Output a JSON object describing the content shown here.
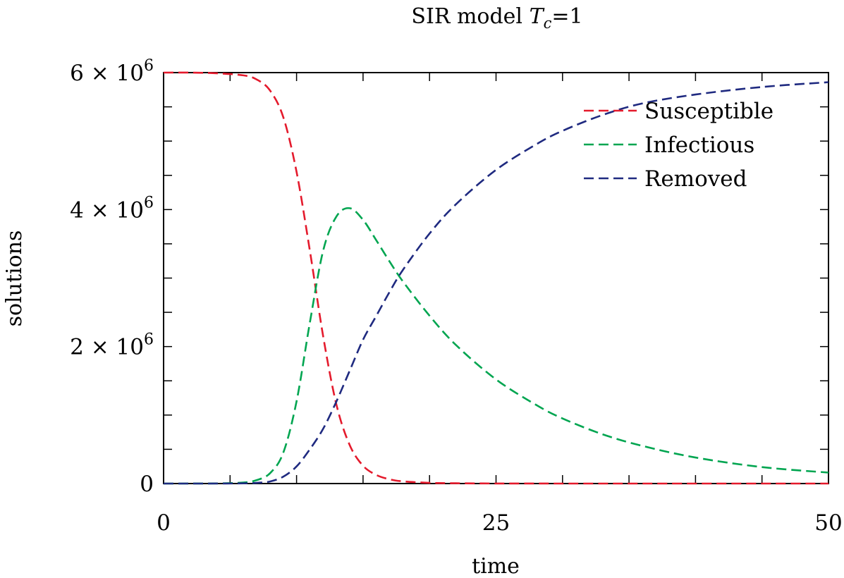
{
  "chart_data": {
    "type": "line",
    "title": "SIR model",
    "title_math": {
      "var": "T",
      "sub": "c",
      "rest": "=1"
    },
    "xlabel": "time",
    "ylabel": "solutions",
    "xlim": [
      0,
      50
    ],
    "ylim": [
      0,
      6000000
    ],
    "x_ticks": [
      0,
      25,
      50
    ],
    "y_ticks": [
      {
        "value": 0,
        "label": "0"
      },
      {
        "value": 2000000,
        "label_mantissa": "2 × 10",
        "label_exp": "6"
      },
      {
        "value": 4000000,
        "label_mantissa": "4 × 10",
        "label_exp": "6"
      },
      {
        "value": 6000000,
        "label_mantissa": "6 × 10",
        "label_exp": "6"
      }
    ],
    "grid": false,
    "legend_position": "top-right",
    "line_style": "dashed",
    "x": [
      0,
      2,
      4,
      6,
      7,
      8,
      9,
      10,
      11,
      12,
      13,
      14,
      15,
      16,
      17,
      18,
      20,
      22,
      25,
      28,
      30,
      33,
      36,
      40,
      45,
      50
    ],
    "series": [
      {
        "name": "Susceptible",
        "color": "#e41a2c",
        "values": [
          6000000,
          6000000,
          5990000,
          5960000,
          5900000,
          5740000,
          5350000,
          4550000,
          3400000,
          2150000,
          1150000,
          560000,
          260000,
          125000,
          62000,
          32000,
          10000,
          4000,
          1000,
          300,
          100,
          50,
          0,
          0,
          0,
          0
        ]
      },
      {
        "name": "Infectious",
        "color": "#00a550",
        "values": [
          0,
          200,
          2000,
          15000,
          50000,
          150000,
          450000,
          1200000,
          2350000,
          3400000,
          3900000,
          4020000,
          3850000,
          3550000,
          3240000,
          2950000,
          2450000,
          2020000,
          1520000,
          1150000,
          950000,
          720000,
          550000,
          380000,
          240000,
          160000
        ]
      },
      {
        "name": "Removed",
        "color": "#1f2a80",
        "values": [
          0,
          0,
          200,
          3000,
          10000,
          30000,
          100000,
          250000,
          500000,
          800000,
          1200000,
          1650000,
          2100000,
          2450000,
          2800000,
          3120000,
          3650000,
          4080000,
          4580000,
          4950000,
          5150000,
          5380000,
          5550000,
          5680000,
          5790000,
          5860000
        ]
      }
    ]
  }
}
